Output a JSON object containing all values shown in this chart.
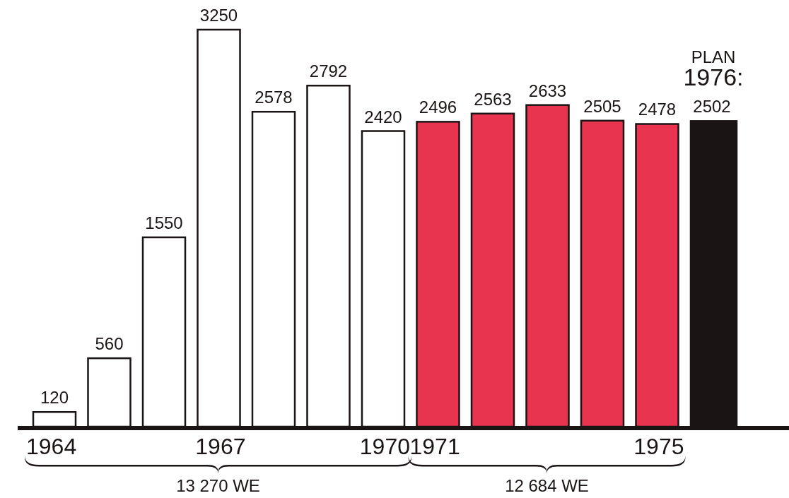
{
  "chart_data": {
    "type": "bar",
    "categories": [
      "1964",
      null,
      null,
      "1967",
      null,
      null,
      "1970",
      "1971",
      null,
      null,
      null,
      "1975",
      null
    ],
    "values": [
      120,
      560,
      1550,
      3250,
      2578,
      2792,
      2420,
      2496,
      2563,
      2633,
      2505,
      2478,
      2502
    ],
    "colors": [
      "#ffffff",
      "#ffffff",
      "#ffffff",
      "#ffffff",
      "#ffffff",
      "#ffffff",
      "#ffffff",
      "#e8344f",
      "#e8344f",
      "#e8344f",
      "#e8344f",
      "#e8344f",
      "#1a1414"
    ],
    "data_labels": true,
    "annotations": [
      "13 270 WE",
      "12 684 WE",
      "PLAN 1976:"
    ]
  }
}
